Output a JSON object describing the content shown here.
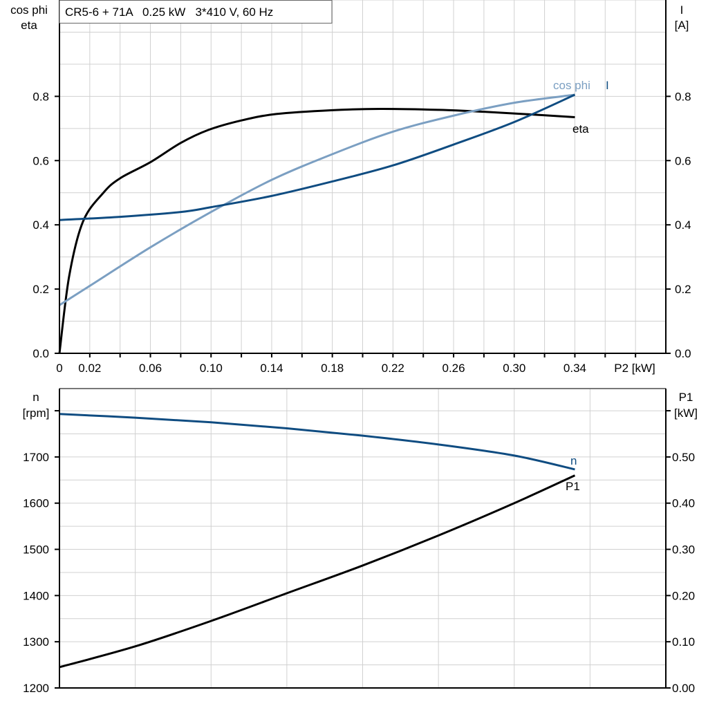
{
  "chart_data": [
    {
      "type": "line",
      "title": "CR5-6 + 71A   0.25 kW   3*410 V, 60 Hz",
      "xlabel": "P2 [kW]",
      "ylabel_left": [
        "cos phi",
        "eta"
      ],
      "ylabel_right": [
        "I",
        "[A]"
      ],
      "xlim": [
        0,
        0.4
      ],
      "ylim": [
        0,
        1.1
      ],
      "y2lim": [
        0,
        1.1
      ],
      "grid": true,
      "x_tick_labels": [
        "0",
        "0.02",
        "0.06",
        "0.10",
        "0.14",
        "0.18",
        "0.22",
        "0.26",
        "0.30",
        "0.34"
      ],
      "x_tick_values": [
        0,
        0.02,
        0.06,
        0.1,
        0.14,
        0.18,
        0.22,
        0.26,
        0.3,
        0.34
      ],
      "y_tick_labels": [
        "0.0",
        "0.2",
        "0.4",
        "0.6",
        "0.8"
      ],
      "y_tick_values": [
        0,
        0.2,
        0.4,
        0.6,
        0.8
      ],
      "y2_tick_labels": [
        "0.0",
        "0.2",
        "0.4",
        "0.6",
        "0.8"
      ],
      "series": [
        {
          "name": "eta",
          "color": "#000000",
          "x": [
            0,
            0.0064,
            0.0155,
            0.029,
            0.04,
            0.06,
            0.08,
            0.098,
            0.12,
            0.143,
            0.18,
            0.212,
            0.25,
            0.28,
            0.31,
            0.34
          ],
          "y": [
            0,
            0.24,
            0.41,
            0.5,
            0.545,
            0.595,
            0.655,
            0.695,
            0.725,
            0.745,
            0.757,
            0.761,
            0.758,
            0.752,
            0.744,
            0.735
          ]
        },
        {
          "name": "cos phi",
          "color": "#7b9fc2",
          "x": [
            0,
            0.02,
            0.06,
            0.1,
            0.14,
            0.18,
            0.22,
            0.26,
            0.3,
            0.34
          ],
          "y": [
            0.15,
            0.21,
            0.33,
            0.44,
            0.54,
            0.62,
            0.69,
            0.74,
            0.78,
            0.805
          ]
        },
        {
          "name": "I",
          "color": "#0f4c81",
          "x": [
            0,
            0.04,
            0.08,
            0.1,
            0.14,
            0.18,
            0.22,
            0.26,
            0.3,
            0.34
          ],
          "y": [
            0.415,
            0.425,
            0.44,
            0.455,
            0.49,
            0.535,
            0.585,
            0.65,
            0.72,
            0.805
          ]
        }
      ]
    },
    {
      "type": "line",
      "xlim": [
        0,
        0.4
      ],
      "ylim": [
        1200,
        1848
      ],
      "y2lim": [
        0,
        0.648
      ],
      "grid": true,
      "ylabel_left": [
        "n",
        "[rpm]"
      ],
      "ylabel_right": [
        "P1",
        "[kW]"
      ],
      "y_tick_labels": [
        "1200",
        "1300",
        "1400",
        "1500",
        "1600",
        "1700"
      ],
      "y_tick_values": [
        1200,
        1300,
        1400,
        1500,
        1600,
        1700
      ],
      "y2_tick_labels": [
        "0.00",
        "0.10",
        "0.20",
        "0.30",
        "0.40",
        "0.50"
      ],
      "y2_tick_values": [
        0,
        0.1,
        0.2,
        0.3,
        0.4,
        0.5
      ],
      "series": [
        {
          "name": "n",
          "axis": "left",
          "color": "#0f4c81",
          "x": [
            0,
            0.05,
            0.1,
            0.15,
            0.2,
            0.25,
            0.3,
            0.34
          ],
          "y": [
            1793,
            1785,
            1775,
            1762,
            1746,
            1727,
            1703,
            1673
          ]
        },
        {
          "name": "P1",
          "axis": "right",
          "color": "#000000",
          "x": [
            0,
            0.05,
            0.1,
            0.15,
            0.2,
            0.25,
            0.3,
            0.34
          ],
          "y": [
            0.045,
            0.09,
            0.145,
            0.205,
            0.265,
            0.33,
            0.4,
            0.46
          ]
        }
      ]
    }
  ]
}
